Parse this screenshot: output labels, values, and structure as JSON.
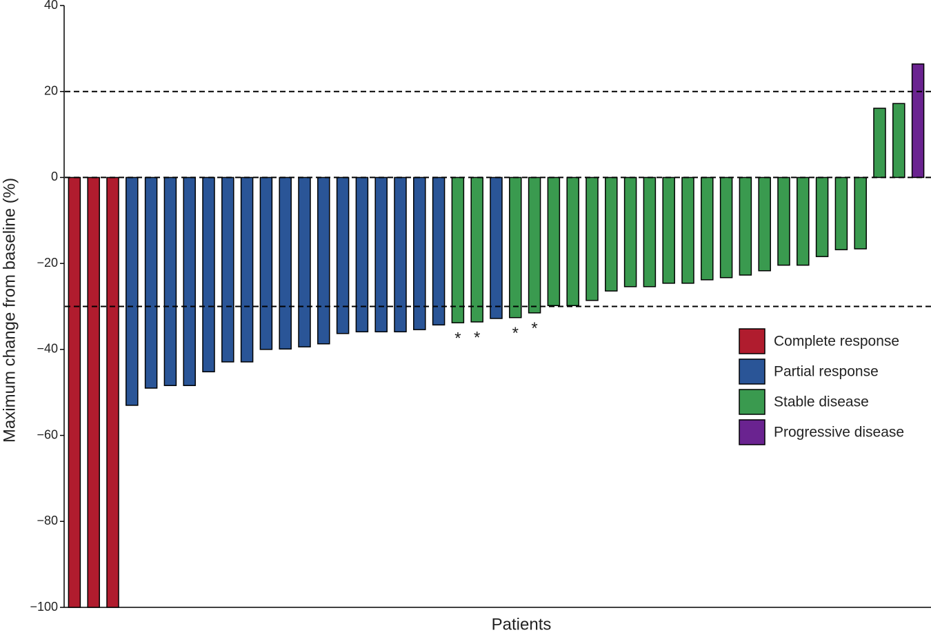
{
  "chart_data": {
    "type": "bar",
    "xlabel": "Patients",
    "ylabel": "Maximum change from baseline (%)",
    "categories": [
      null,
      null,
      null,
      null,
      null,
      null,
      null,
      null,
      null,
      null,
      null,
      null,
      null,
      null,
      null,
      null,
      null,
      null,
      null,
      null,
      null,
      null,
      null,
      null,
      null,
      null,
      null,
      null,
      null,
      null,
      null,
      null,
      null,
      null,
      null,
      null,
      null,
      null,
      null,
      null,
      null,
      null,
      null,
      null,
      null
    ],
    "series": [
      {
        "name": "Complete response",
        "color": "#b01c2e",
        "values": [
          -100,
          -100,
          -100,
          null,
          null,
          null,
          null,
          null,
          null,
          null,
          null,
          null,
          null,
          null,
          null,
          null,
          null,
          null,
          null,
          null,
          null,
          null,
          null,
          null,
          null,
          null,
          null,
          null,
          null,
          null,
          null,
          null,
          null,
          null,
          null,
          null,
          null,
          null,
          null,
          null,
          null,
          null,
          null,
          null,
          null
        ]
      },
      {
        "name": "Partial response",
        "color": "#2a5597",
        "values": [
          null,
          null,
          null,
          -53.0,
          -49.0,
          -48.4,
          -48.4,
          -45.2,
          -42.9,
          -42.9,
          -40.0,
          -39.9,
          -39.4,
          -38.7,
          -36.3,
          -35.9,
          -35.9,
          -35.9,
          -35.4,
          -34.3,
          null,
          null,
          -32.8,
          null,
          null,
          null,
          null,
          null,
          null,
          null,
          null,
          null,
          null,
          null,
          null,
          null,
          null,
          null,
          null,
          null,
          null,
          null,
          null,
          null,
          null
        ]
      },
      {
        "name": "Stable disease",
        "color": "#3a9a4f",
        "values": [
          null,
          null,
          null,
          null,
          null,
          null,
          null,
          null,
          null,
          null,
          null,
          null,
          null,
          null,
          null,
          null,
          null,
          null,
          null,
          null,
          -33.8,
          -33.6,
          null,
          -32.6,
          -31.5,
          -29.8,
          -29.8,
          -28.6,
          -26.4,
          -25.4,
          -25.4,
          -24.6,
          -24.6,
          -23.8,
          -23.3,
          -22.7,
          -21.7,
          -20.4,
          -20.4,
          -18.4,
          -16.8,
          -16.6,
          16.1,
          17.2,
          null
        ],
        "annotations": [
          null,
          null,
          null,
          null,
          null,
          null,
          null,
          null,
          null,
          null,
          null,
          null,
          null,
          null,
          null,
          null,
          null,
          null,
          null,
          null,
          "*",
          "*",
          null,
          "*",
          "*",
          null,
          null,
          null,
          null,
          null,
          null,
          null,
          null,
          null,
          null,
          null,
          null,
          null,
          null,
          null,
          null,
          null,
          null,
          null,
          null
        ]
      },
      {
        "name": "Progressive disease",
        "color": "#6a2390",
        "values": [
          null,
          null,
          null,
          null,
          null,
          null,
          null,
          null,
          null,
          null,
          null,
          null,
          null,
          null,
          null,
          null,
          null,
          null,
          null,
          null,
          null,
          null,
          null,
          null,
          null,
          null,
          null,
          null,
          null,
          null,
          null,
          null,
          null,
          null,
          null,
          null,
          null,
          null,
          null,
          null,
          null,
          null,
          null,
          null,
          26.4
        ]
      }
    ],
    "ylim": [
      -100,
      40
    ],
    "yticks": [
      40,
      20,
      0,
      {
        "value": -20,
        "label": "−20"
      },
      {
        "value": -40,
        "label": "−40"
      },
      {
        "value": -60,
        "label": "−60"
      },
      {
        "value": -80,
        "label": "−80"
      },
      {
        "value": -100,
        "label": "−100"
      }
    ],
    "hlines": [
      20,
      0,
      -30
    ],
    "legend": "right"
  }
}
